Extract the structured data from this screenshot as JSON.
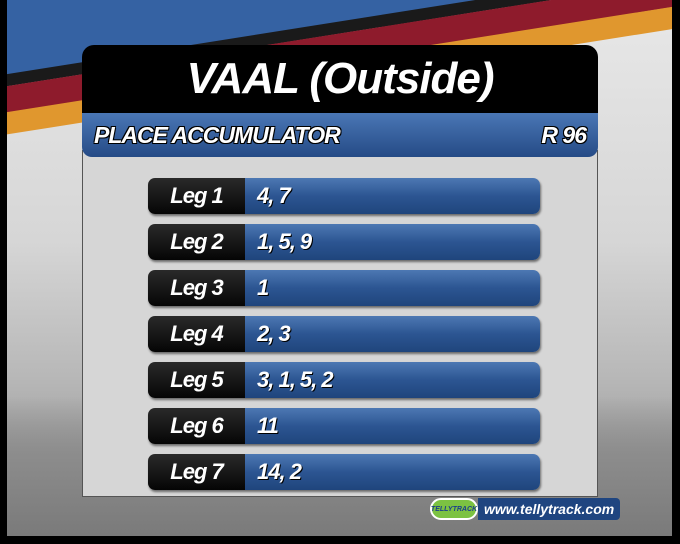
{
  "header": {
    "title": "VAAL (Outside)",
    "bet_type": "PLACE ACCUMULATOR",
    "pool": "R 96"
  },
  "legs": [
    {
      "label": "Leg 1",
      "runners": "4, 7"
    },
    {
      "label": "Leg 2",
      "runners": "1, 5, 9"
    },
    {
      "label": "Leg 3",
      "runners": "1"
    },
    {
      "label": "Leg 4",
      "runners": "2, 3"
    },
    {
      "label": "Leg 5",
      "runners": "3, 1, 5, 2"
    },
    {
      "label": "Leg 6",
      "runners": "11"
    },
    {
      "label": "Leg 7",
      "runners": "14, 2"
    }
  ],
  "branding": {
    "logo_text": "TELLYTRACK",
    "url": "www.tellytrack.com"
  },
  "colors": {
    "blue": "#2c5592",
    "black": "#000000",
    "red": "#8e1b2c",
    "orange": "#e0972e"
  }
}
